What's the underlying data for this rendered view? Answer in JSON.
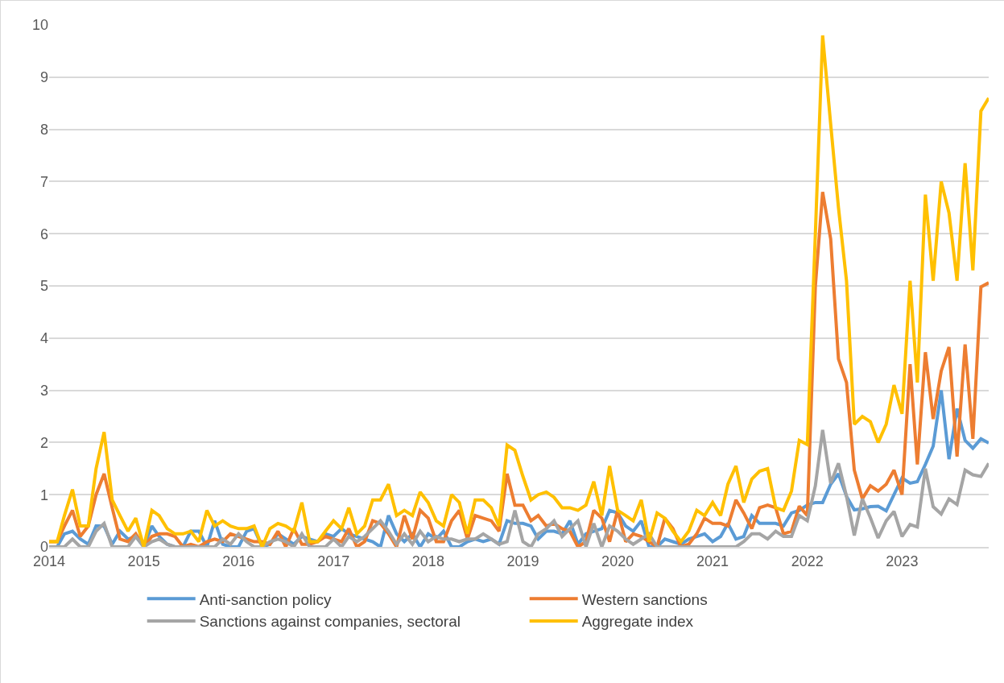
{
  "chart_data": {
    "type": "line",
    "x": [
      "2014-01",
      "2014-02",
      "2014-03",
      "2014-04",
      "2014-05",
      "2014-06",
      "2014-07",
      "2014-08",
      "2014-09",
      "2014-10",
      "2014-11",
      "2014-12",
      "2015-01",
      "2015-02",
      "2015-03",
      "2015-04",
      "2015-05",
      "2015-06",
      "2015-07",
      "2015-08",
      "2015-09",
      "2015-10",
      "2015-11",
      "2015-12",
      "2016-01",
      "2016-02",
      "2016-03",
      "2016-04",
      "2016-05",
      "2016-06",
      "2016-07",
      "2016-08",
      "2016-09",
      "2016-10",
      "2016-11",
      "2016-12",
      "2017-01",
      "2017-02",
      "2017-03",
      "2017-04",
      "2017-05",
      "2017-06",
      "2017-07",
      "2017-08",
      "2017-09",
      "2017-10",
      "2017-11",
      "2017-12",
      "2018-01",
      "2018-02",
      "2018-03",
      "2018-04",
      "2018-05",
      "2018-06",
      "2018-07",
      "2018-08",
      "2018-09",
      "2018-10",
      "2018-11",
      "2018-12",
      "2019-01",
      "2019-02",
      "2019-03",
      "2019-04",
      "2019-05",
      "2019-06",
      "2019-07",
      "2019-08",
      "2019-09",
      "2019-10",
      "2019-11",
      "2019-12",
      "2020-01",
      "2020-02",
      "2020-03",
      "2020-04",
      "2020-05",
      "2020-06",
      "2020-07",
      "2020-08",
      "2020-09",
      "2020-10",
      "2020-11",
      "2020-12",
      "2021-01",
      "2021-02",
      "2021-03",
      "2021-04",
      "2021-05",
      "2021-06",
      "2021-07",
      "2021-08",
      "2021-09",
      "2021-10",
      "2021-11",
      "2021-12",
      "2022-01",
      "2022-02",
      "2022-03",
      "2022-04",
      "2022-05",
      "2022-06",
      "2022-07",
      "2022-08",
      "2022-09",
      "2022-10",
      "2022-11",
      "2022-12",
      "2023-01",
      "2023-02",
      "2023-03",
      "2023-04",
      "2023-05",
      "2023-06",
      "2023-07",
      "2023-08",
      "2023-09",
      "2023-10",
      "2023-11",
      "2023-12"
    ],
    "series": [
      {
        "name": "Anti-sanction policy",
        "color": "#5b9bd5",
        "values": [
          0,
          0,
          0.25,
          0.3,
          0.15,
          0.05,
          0.4,
          0.4,
          0.05,
          0.3,
          0.15,
          0.2,
          0,
          0.4,
          0.2,
          0.05,
          0,
          0,
          0.3,
          0.3,
          0,
          0.5,
          0.05,
          0,
          0,
          0.3,
          0.35,
          0,
          0.05,
          0.25,
          0.15,
          0.05,
          0.2,
          0.15,
          0.1,
          0.25,
          0.2,
          0.35,
          0.25,
          0.2,
          0.15,
          0.1,
          0,
          0.6,
          0.25,
          0.1,
          0.25,
          0,
          0.25,
          0.15,
          0.3,
          0,
          0,
          0.1,
          0.15,
          0.1,
          0.15,
          0.05,
          0.5,
          0.45,
          0.45,
          0.4,
          0.15,
          0.3,
          0.3,
          0.25,
          0.5,
          0.05,
          0.25,
          0.3,
          0.35,
          0.7,
          0.65,
          0.4,
          0.3,
          0.5,
          0,
          0,
          0.15,
          0.1,
          0.05,
          0.15,
          0.2,
          0.25,
          0.1,
          0.2,
          0.45,
          0.15,
          0.2,
          0.6,
          0.45,
          0.45,
          0.45,
          0.4,
          0.65,
          0.7,
          0.8,
          0.85,
          0.85,
          1.2,
          1.4,
          0.97,
          0.71,
          0.73,
          0.77,
          0.78,
          0.69,
          1.0,
          1.32,
          1.22,
          1.25,
          1.58,
          1.93,
          3.0,
          1.68,
          2.65,
          2.04,
          1.89,
          2.07,
          1.99
        ]
      },
      {
        "name": "Western sanctions",
        "color": "#ed7d31",
        "values": [
          0.1,
          0.1,
          0.4,
          0.7,
          0.2,
          0.4,
          1.0,
          1.4,
          0.75,
          0.15,
          0.1,
          0.25,
          0,
          0.2,
          0.25,
          0.25,
          0.2,
          0,
          0.05,
          0,
          0.1,
          0.15,
          0.1,
          0.25,
          0.2,
          0.15,
          0.1,
          0.1,
          0.05,
          0.3,
          0,
          0.35,
          0.05,
          0.05,
          0.1,
          0.2,
          0.15,
          0.1,
          0.35,
          0,
          0.1,
          0.5,
          0.45,
          0.25,
          0,
          0.6,
          0.15,
          0.7,
          0.55,
          0.1,
          0.1,
          0.5,
          0.7,
          0.15,
          0.6,
          0.55,
          0.5,
          0.3,
          1.4,
          0.8,
          0.8,
          0.5,
          0.6,
          0.4,
          0.45,
          0.35,
          0.3,
          0,
          0.1,
          0.7,
          0.55,
          0.1,
          0.7,
          0.1,
          0.25,
          0.2,
          0.1,
          0,
          0.55,
          0.35,
          0,
          0.05,
          0.25,
          0.55,
          0.45,
          0.45,
          0.4,
          0.9,
          0.65,
          0.35,
          0.75,
          0.8,
          0.75,
          0.25,
          0.3,
          0.78,
          0.6,
          5.0,
          6.8,
          5.9,
          3.6,
          3.15,
          1.47,
          0.92,
          1.17,
          1.07,
          1.2,
          1.47,
          1.0,
          3.5,
          1.58,
          3.73,
          2.45,
          3.37,
          3.83,
          1.73,
          3.88,
          2.07,
          4.98,
          5.06
        ]
      },
      {
        "name": "Sanctions against companies, sectoral",
        "color": "#a5a5a5",
        "values": [
          0,
          0,
          0,
          0.15,
          0,
          0,
          0.3,
          0.45,
          0,
          0,
          0,
          0.2,
          0,
          0.1,
          0.15,
          0.05,
          0,
          0,
          0,
          0,
          0,
          0,
          0.15,
          0.05,
          0.25,
          0.1,
          0,
          0,
          0.1,
          0.15,
          0.1,
          0,
          0.25,
          0,
          0,
          0,
          0.15,
          0,
          0.2,
          0.1,
          0.2,
          0.35,
          0.5,
          0.3,
          0.05,
          0.25,
          0.05,
          0.3,
          0.1,
          0.2,
          0.15,
          0.15,
          0.1,
          0.15,
          0.15,
          0.25,
          0.15,
          0.05,
          0.1,
          0.7,
          0.1,
          0,
          0.25,
          0.35,
          0.5,
          0.2,
          0.35,
          0.5,
          0,
          0.45,
          0,
          0.4,
          0.3,
          0.15,
          0.05,
          0.15,
          0.25,
          0,
          0,
          0,
          0,
          0,
          0,
          0,
          0,
          0,
          0,
          0,
          0.1,
          0.25,
          0.25,
          0.15,
          0.3,
          0.2,
          0.2,
          0.6,
          0.5,
          1.17,
          2.24,
          1.22,
          1.6,
          0.97,
          0.22,
          0.92,
          0.56,
          0.17,
          0.5,
          0.68,
          0.2,
          0.43,
          0.38,
          1.5,
          0.77,
          0.63,
          0.92,
          0.81,
          1.47,
          1.38,
          1.35,
          1.6
        ]
      },
      {
        "name": "Aggregate index",
        "color": "#ffc000",
        "values": [
          0.1,
          0.1,
          0.6,
          1.1,
          0.4,
          0.4,
          1.5,
          2.2,
          0.9,
          0.6,
          0.3,
          0.55,
          0,
          0.7,
          0.6,
          0.35,
          0.25,
          0.25,
          0.3,
          0.1,
          0.7,
          0.4,
          0.5,
          0.4,
          0.35,
          0.35,
          0.4,
          0,
          0.35,
          0.45,
          0.4,
          0.3,
          0.85,
          0.1,
          0.1,
          0.3,
          0.5,
          0.35,
          0.75,
          0.25,
          0.4,
          0.9,
          0.9,
          1.2,
          0.6,
          0.7,
          0.6,
          1.05,
          0.85,
          0.5,
          0.4,
          1.0,
          0.85,
          0.25,
          0.9,
          0.9,
          0.75,
          0.4,
          1.95,
          1.85,
          1.35,
          0.9,
          1.0,
          1.05,
          0.95,
          0.75,
          0.75,
          0.7,
          0.8,
          1.25,
          0.6,
          1.55,
          0.7,
          0.6,
          0.5,
          0.9,
          0.1,
          0.65,
          0.55,
          0.3,
          0.1,
          0.3,
          0.7,
          0.6,
          0.85,
          0.6,
          1.2,
          1.55,
          0.85,
          1.3,
          1.45,
          1.5,
          0.75,
          0.7,
          1.07,
          2.04,
          1.96,
          6.0,
          9.8,
          8.1,
          6.5,
          5.1,
          2.35,
          2.5,
          2.4,
          2.0,
          2.35,
          3.1,
          2.55,
          5.1,
          3.15,
          6.75,
          5.1,
          7.0,
          6.4,
          5.1,
          7.35,
          5.3,
          8.35,
          8.6
        ]
      }
    ],
    "xlim": [
      "2014-01",
      "2023-12"
    ],
    "xticks": [
      {
        "value": "2014-01",
        "label": "2014"
      },
      {
        "value": "2015-01",
        "label": "2015"
      },
      {
        "value": "2016-01",
        "label": "2016"
      },
      {
        "value": "2017-01",
        "label": "2017"
      },
      {
        "value": "2018-01",
        "label": "2018"
      },
      {
        "value": "2019-01",
        "label": "2019"
      },
      {
        "value": "2020-01",
        "label": "2020"
      },
      {
        "value": "2021-01",
        "label": "2021"
      },
      {
        "value": "2022-01",
        "label": "2022"
      },
      {
        "value": "2023-01",
        "label": "2023"
      }
    ],
    "ylim": [
      0,
      10
    ],
    "yticks": [
      0,
      1,
      2,
      3,
      4,
      5,
      6,
      7,
      8,
      9,
      10
    ],
    "grid": "y",
    "legend": "bottom",
    "marker": "none",
    "line_style": "solid"
  }
}
